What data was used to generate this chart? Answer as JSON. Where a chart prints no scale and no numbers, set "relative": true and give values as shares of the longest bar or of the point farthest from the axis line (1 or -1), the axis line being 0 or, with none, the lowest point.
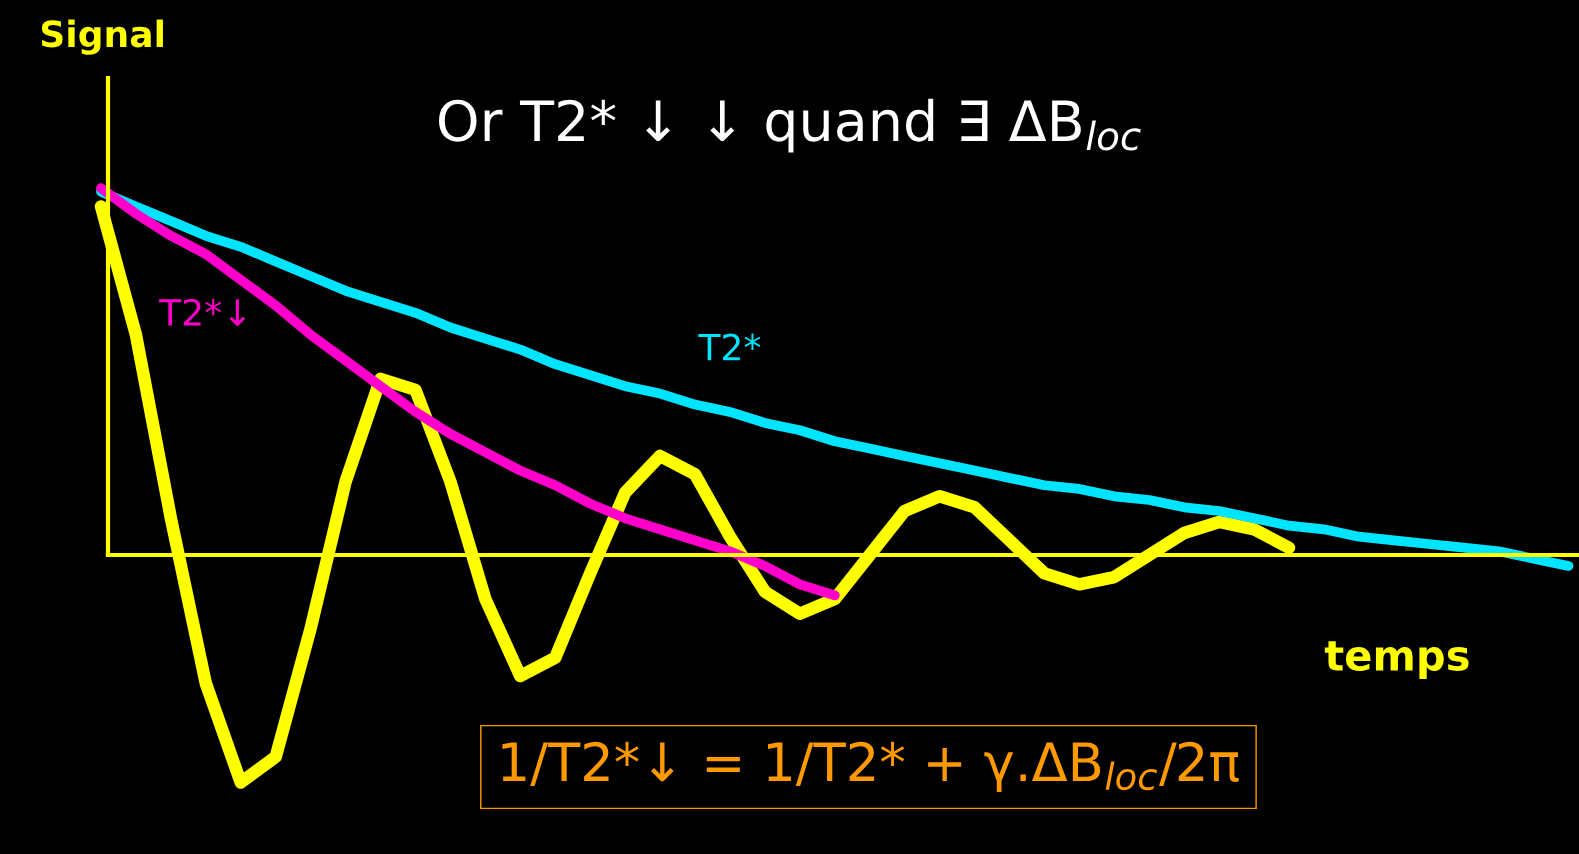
{
  "chart_data": {
    "type": "line",
    "relative": true,
    "title": "Or T2* ↓ ↓ quand ∃ ΔB$_{loc}$",
    "xlabel": "temps",
    "ylabel": "Signal",
    "categories": [
      null,
      null,
      null,
      null,
      null,
      null,
      null,
      null,
      null,
      null,
      null,
      null,
      null,
      null,
      null,
      null,
      null,
      null,
      null,
      null,
      null,
      null,
      null,
      null,
      null,
      null,
      null,
      null,
      null,
      null,
      null,
      null,
      null,
      null,
      null,
      null,
      null,
      null,
      null,
      null,
      null,
      null,
      null
    ],
    "series": [
      {
        "color": "#ffff00",
        "values": [
          0.95,
          0.6,
          0.1,
          -0.35,
          -0.62,
          -0.55,
          -0.2,
          0.2,
          0.48,
          0.45,
          0.2,
          -0.12,
          -0.33,
          -0.28,
          -0.05,
          0.17,
          0.27,
          0.22,
          0.05,
          -0.1,
          -0.16,
          -0.12,
          0.0,
          0.12,
          0.16,
          0.13,
          0.04,
          -0.05,
          -0.08,
          -0.06,
          0.0,
          0.06,
          0.09,
          0.07,
          0.02,
          null,
          null,
          null,
          null,
          null,
          null,
          null,
          null
        ]
      },
      {
        "name": "T2*",
        "color": "#00e5ff",
        "values": [
          0.99,
          0.95,
          0.91,
          0.87,
          0.84,
          0.8,
          0.76,
          0.72,
          0.69,
          0.66,
          0.62,
          0.59,
          0.56,
          0.52,
          0.49,
          0.46,
          0.44,
          0.41,
          0.39,
          0.36,
          0.34,
          0.31,
          0.29,
          0.27,
          0.25,
          0.23,
          0.21,
          0.19,
          0.18,
          0.16,
          0.15,
          0.13,
          0.12,
          0.1,
          0.08,
          0.07,
          0.05,
          0.04,
          0.03,
          0.02,
          0.01,
          -0.01,
          -0.03
        ]
      },
      {
        "name": "T2*↓",
        "color": "#ff00cc",
        "values": [
          1.0,
          0.93,
          0.87,
          0.82,
          0.75,
          0.68,
          0.6,
          0.53,
          0.46,
          0.39,
          0.33,
          0.28,
          0.23,
          0.19,
          0.14,
          0.1,
          0.07,
          0.04,
          0.01,
          -0.03,
          -0.08,
          -0.11,
          null,
          null,
          null,
          null,
          null,
          null,
          null,
          null,
          null,
          null,
          null,
          null,
          null,
          null,
          null,
          null,
          null,
          null,
          null,
          null,
          null
        ]
      }
    ],
    "ref_lines": [
      {
        "axis": "y",
        "value": 0,
        "color": "#ffff00"
      }
    ],
    "annotations": [
      "1/T2*↓ = 1/T2* + γ.ΔB$_{loc}$/2π"
    ]
  }
}
